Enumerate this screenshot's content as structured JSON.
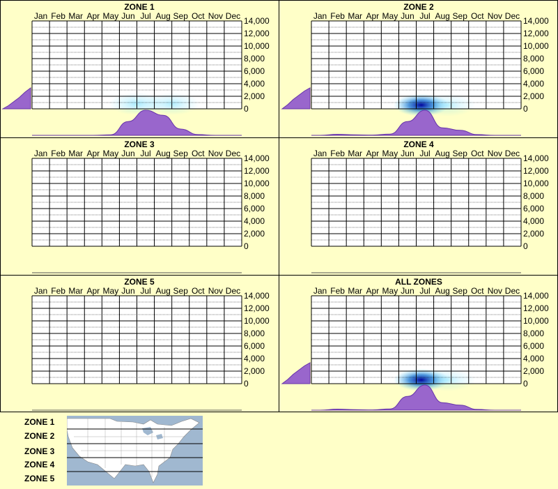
{
  "chart_data": [
    {
      "type": "heatmap",
      "title": "ZONE 1",
      "categories": [
        "Jan",
        "Feb",
        "Mar",
        "Apr",
        "May",
        "Jun",
        "Jul",
        "Aug",
        "Sep",
        "Oct",
        "Nov",
        "Dec"
      ],
      "ytick_labels": [
        "14,000",
        "12,000",
        "10,000",
        "8,000",
        "6,000",
        "4,000",
        "2,000",
        "0"
      ],
      "ylim": [
        0,
        14000
      ],
      "has_data": true,
      "elevation_hist": [
        0.0,
        0.15,
        0.35,
        0.55,
        0.8,
        1.0
      ],
      "month_curve": [
        0,
        0,
        0,
        0,
        0.02,
        0.55,
        1.0,
        0.8,
        0.25,
        0.03,
        0,
        0
      ],
      "heat": [
        {
          "month": 6.5,
          "elev": 800,
          "intensity": 0.35
        },
        {
          "month": 8.5,
          "elev": 800,
          "intensity": 0.3
        }
      ]
    },
    {
      "type": "heatmap",
      "title": "ZONE 2",
      "categories": [
        "Jan",
        "Feb",
        "Mar",
        "Apr",
        "May",
        "Jun",
        "Jul",
        "Aug",
        "Sep",
        "Oct",
        "Nov",
        "Dec"
      ],
      "ytick_labels": [
        "14,000",
        "12,000",
        "10,000",
        "8,000",
        "6,000",
        "4,000",
        "2,000",
        "0"
      ],
      "ylim": [
        0,
        14000
      ],
      "has_data": true,
      "elevation_hist": [
        0.0,
        0.2,
        0.45,
        0.65,
        0.85,
        1.0
      ],
      "month_curve": [
        0,
        0.04,
        0.02,
        0.01,
        0.05,
        0.55,
        1.0,
        0.3,
        0.2,
        0.03,
        0,
        0
      ],
      "heat": [
        {
          "month": 6.8,
          "elev": 600,
          "intensity": 1.0
        },
        {
          "month": 8.3,
          "elev": 600,
          "intensity": 0.25
        }
      ]
    },
    {
      "type": "heatmap",
      "title": "ZONE 3",
      "categories": [
        "Jan",
        "Feb",
        "Mar",
        "Apr",
        "May",
        "Jun",
        "Jul",
        "Aug",
        "Sep",
        "Oct",
        "Nov",
        "Dec"
      ],
      "ytick_labels": [
        "14,000",
        "12,000",
        "10,000",
        "8,000",
        "6,000",
        "4,000",
        "2,000",
        "0"
      ],
      "ylim": [
        0,
        14000
      ],
      "has_data": false
    },
    {
      "type": "heatmap",
      "title": "ZONE 4",
      "categories": [
        "Jan",
        "Feb",
        "Mar",
        "Apr",
        "May",
        "Jun",
        "Jul",
        "Aug",
        "Sep",
        "Oct",
        "Nov",
        "Dec"
      ],
      "ytick_labels": [
        "14,000",
        "12,000",
        "10,000",
        "8,000",
        "6,000",
        "4,000",
        "2,000",
        "0"
      ],
      "ylim": [
        0,
        14000
      ],
      "has_data": false
    },
    {
      "type": "heatmap",
      "title": "ZONE 5",
      "categories": [
        "Jan",
        "Feb",
        "Mar",
        "Apr",
        "May",
        "Jun",
        "Jul",
        "Aug",
        "Sep",
        "Oct",
        "Nov",
        "Dec"
      ],
      "ytick_labels": [
        "14,000",
        "12,000",
        "10,000",
        "8,000",
        "6,000",
        "4,000",
        "2,000",
        "0"
      ],
      "ylim": [
        0,
        14000
      ],
      "has_data": false
    },
    {
      "type": "heatmap",
      "title": "ALL ZONES",
      "categories": [
        "Jan",
        "Feb",
        "Mar",
        "Apr",
        "May",
        "Jun",
        "Jul",
        "Aug",
        "Sep",
        "Oct",
        "Nov",
        "Dec"
      ],
      "ytick_labels": [
        "14,000",
        "12,000",
        "10,000",
        "8,000",
        "6,000",
        "4,000",
        "2,000",
        "0"
      ],
      "ylim": [
        0,
        14000
      ],
      "has_data": true,
      "elevation_hist": [
        0.0,
        0.2,
        0.45,
        0.65,
        0.85,
        1.0
      ],
      "month_curve": [
        0,
        0.04,
        0.02,
        0.01,
        0.05,
        0.55,
        1.0,
        0.3,
        0.2,
        0.03,
        0,
        0
      ],
      "heat": [
        {
          "month": 6.8,
          "elev": 600,
          "intensity": 1.0
        },
        {
          "month": 8.3,
          "elev": 600,
          "intensity": 0.25
        }
      ]
    }
  ],
  "legend": {
    "zones": [
      "ZONE 1",
      "ZONE 2",
      "ZONE 3",
      "ZONE 4",
      "ZONE 5"
    ]
  },
  "colors": {
    "background": "#ffffc8",
    "density_fill": "#9966cc",
    "density_stroke": "#6633aa",
    "heat_high": "#000099",
    "heat_low": "#66ddff",
    "map_water": "#a0b8d0",
    "map_land": "#ffffff"
  }
}
